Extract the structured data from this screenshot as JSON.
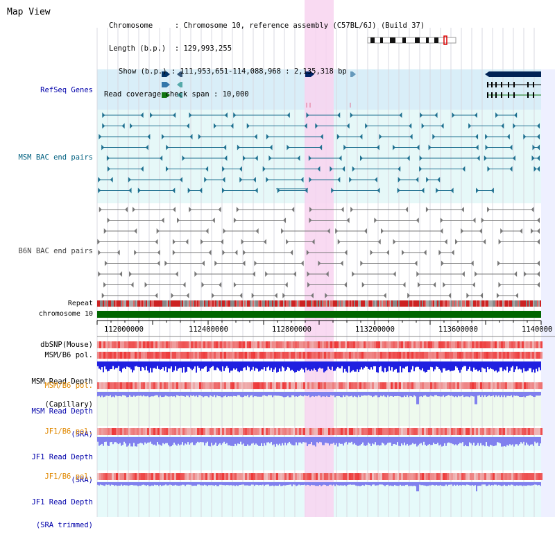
{
  "view_title": "Map View",
  "info": {
    "chromosome_key": "Chromosome",
    "chromosome_value": "Chromosome 10, reference assembly (C57BL/6J) (Build 37)",
    "length_key": "Length (b.p.)",
    "length_value": "129,993,255",
    "show_key": "Show (b.p.)",
    "show_value": "111,953,651-114,088,968 : 2,135,318 bp",
    "coverage_key": "Read coverage check span",
    "coverage_value": "10,000"
  },
  "tracks": {
    "refseq": "RefSeq Genes",
    "msm_bac": "MSM BAC end pairs",
    "b6n_bac": "B6N BAC end pairs",
    "repeat": "Repeat",
    "chromosome": "chromosome 10",
    "dbsnp": "dbSNP(Mouse)",
    "msm_b6_pol_1": "MSM/B6 pol.",
    "msm_depth_cap_1": "MSM Read Depth",
    "msm_depth_cap_2": "(Capillary)",
    "msm_b6_pol_2": "MSM/B6 pol.",
    "msm_depth_sra_1": "MSM Read Depth",
    "msm_depth_sra_2": "(SRA)",
    "jf1_b6_pol_1": "JF1/B6 pol.",
    "jf1_depth_sra_1": "JF1 Read Depth",
    "jf1_depth_sra_2": "(SRA)",
    "jf1_b6_pol_2": "JF1/B6 pol.",
    "jf1_depth_trim_1": "JF1 Read Depth",
    "jf1_depth_trim_2": "(SRA trimmed)"
  },
  "axis": {
    "ticks": [
      "112000000",
      "112400000",
      "112800000",
      "113200000",
      "113600000",
      "1140000"
    ]
  },
  "colors": {
    "refseq_bg": "#d9eef8",
    "bac_bg": "#e6f8f8",
    "highlight": "#f8d4f0",
    "chromosome_bar": "#006600",
    "depth_capillary": "#2020e0",
    "depth_sra": "#8080ee",
    "snp": "#ee4444"
  }
}
